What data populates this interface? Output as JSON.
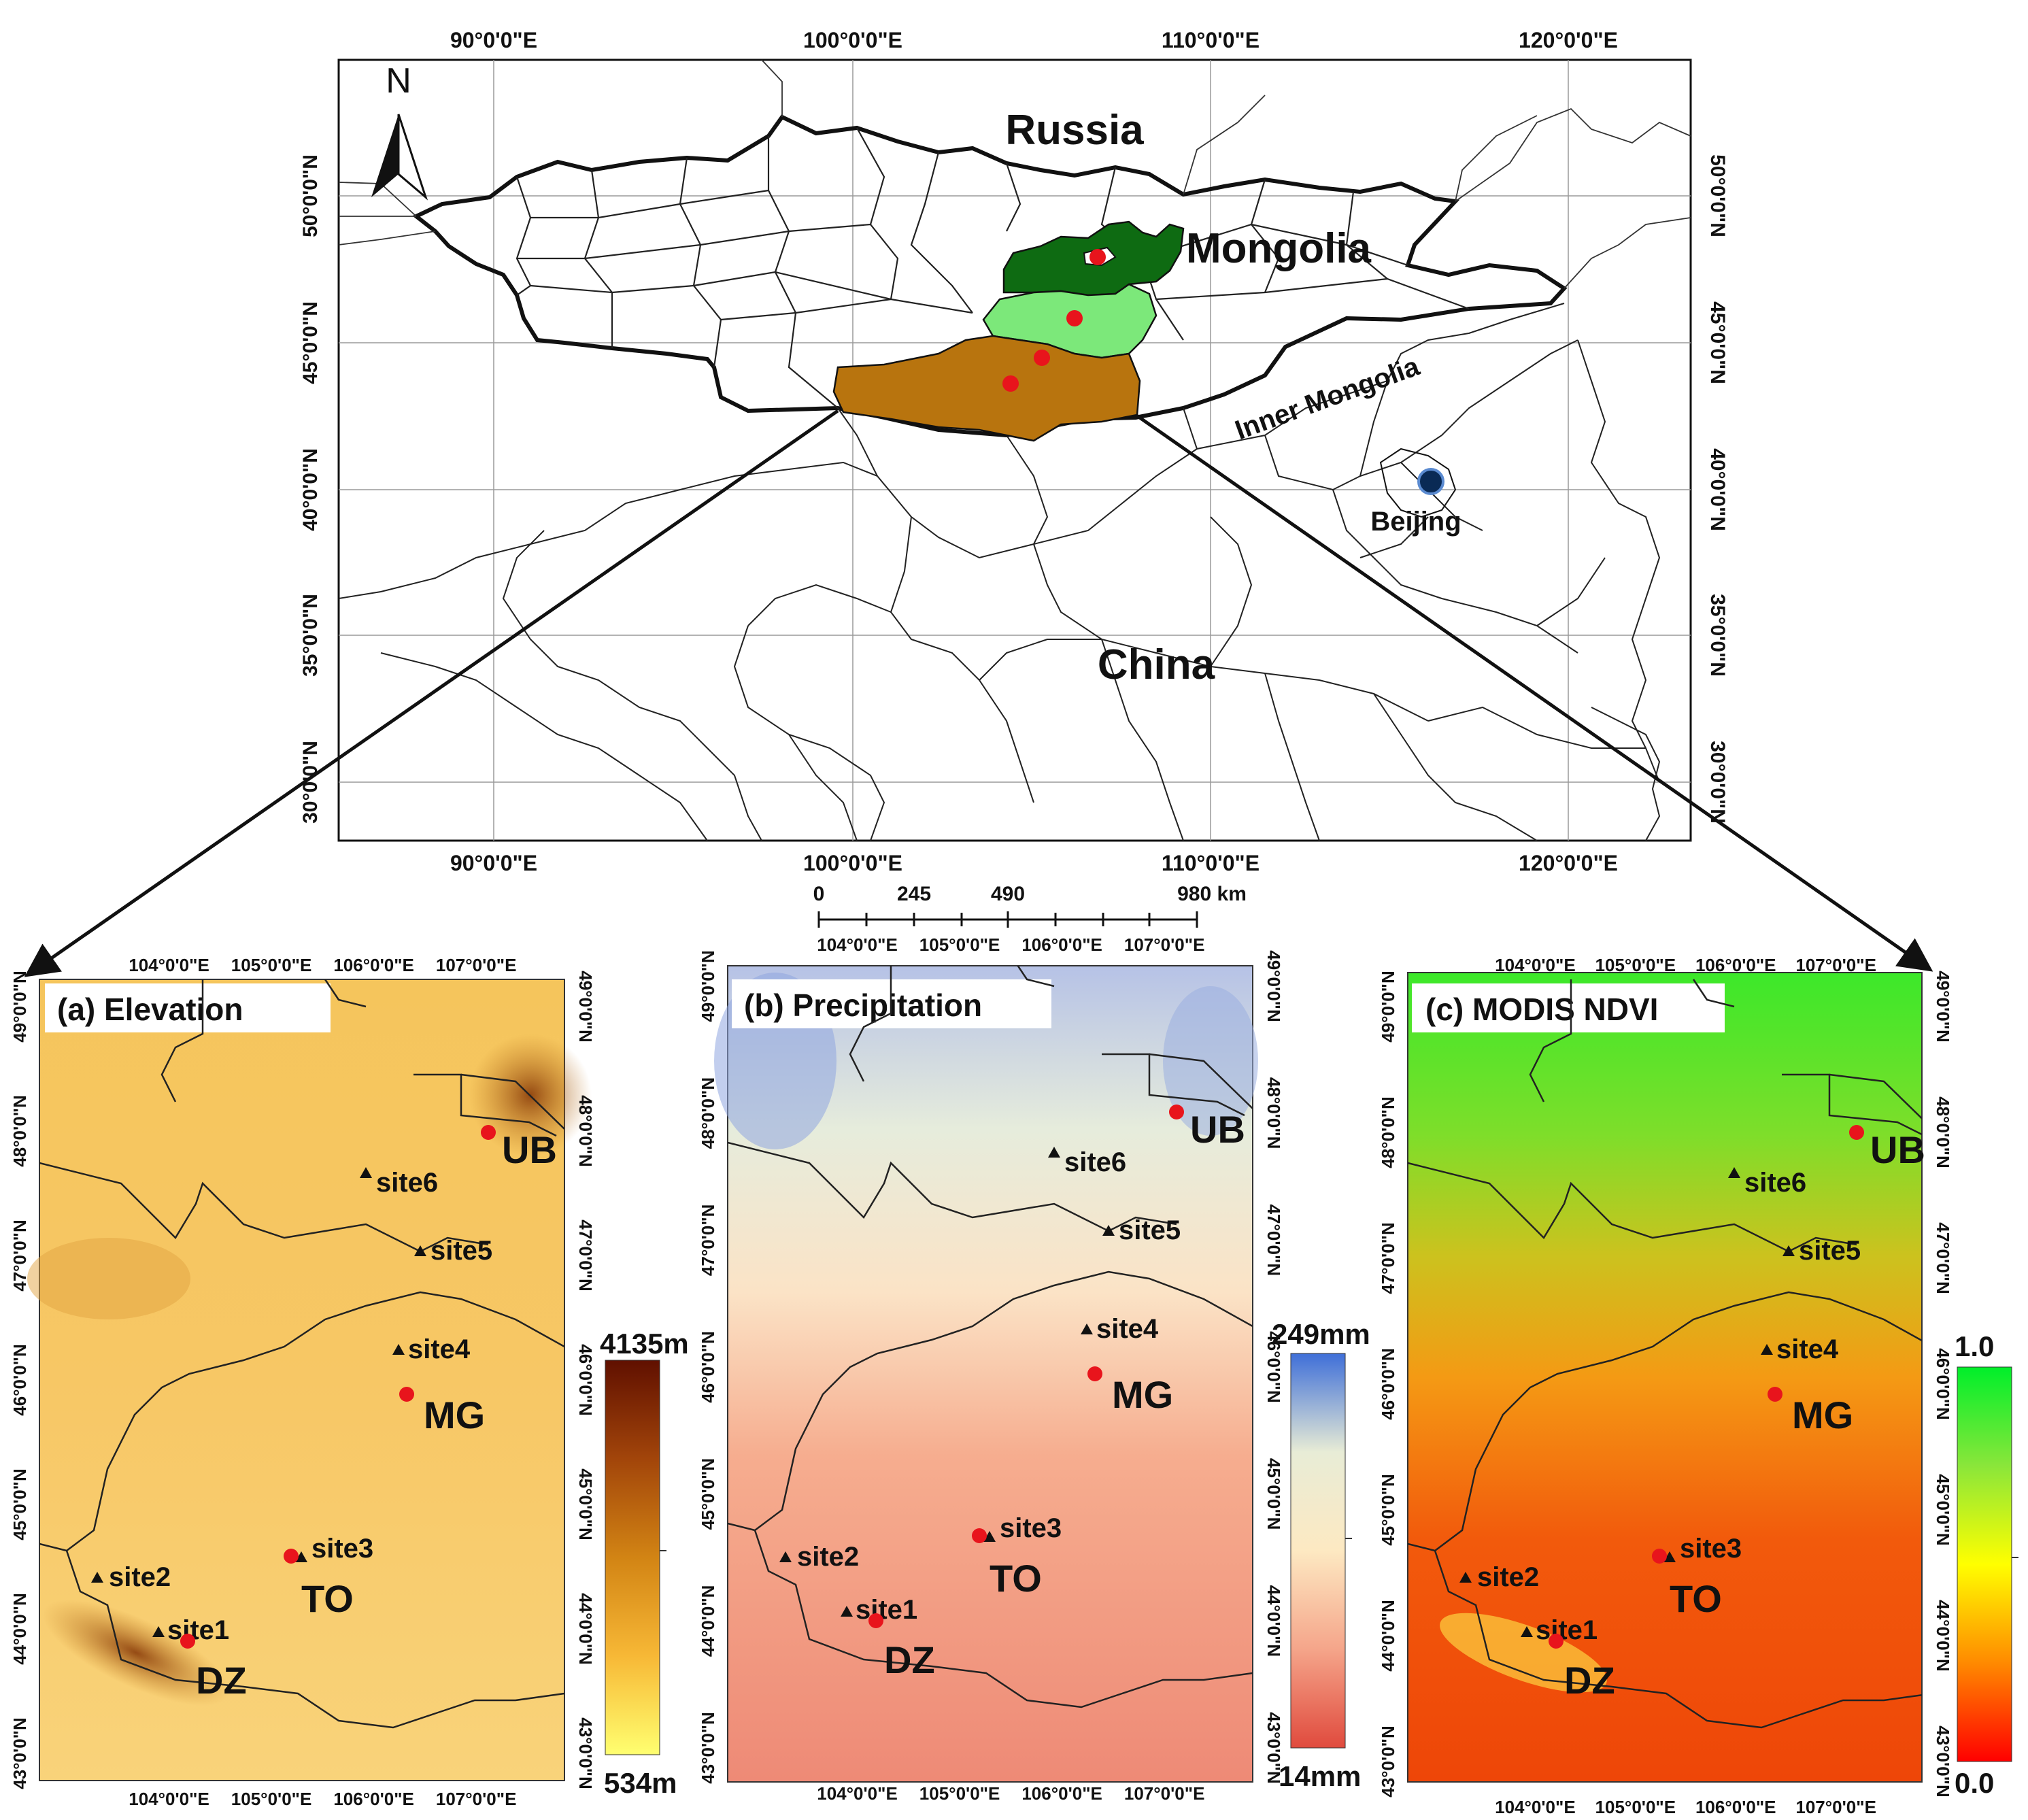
{
  "overview": {
    "top_lon_ticks": [
      "90°0'0\"E",
      "100°0'0\"E",
      "110°0'0\"E",
      "120°0'0\"E"
    ],
    "bottom_lon_ticks": [
      "90°0'0\"E",
      "100°0'0\"E",
      "110°0'0\"E",
      "120°0'0\"E"
    ],
    "lat_ticks": [
      "50°0'0\"N",
      "45°0'0\"N",
      "40°0'0\"N",
      "35°0'0\"N",
      "30°0'0\"N"
    ],
    "north_label": "N",
    "labels": {
      "russia": "Russia",
      "mongolia": "Mongolia",
      "inner_mongolia": "Inner Mongolia",
      "beijing": "Beijing",
      "china": "China"
    },
    "colors": {
      "dark_green": "#0e6b12",
      "light_green": "#7ce87a",
      "brown": "#b8740e",
      "site_dot": "#e8141c",
      "beijing_dot": "#0a2a55"
    }
  },
  "scale_bar": {
    "labels": [
      "0",
      "245",
      "490",
      "980 km"
    ]
  },
  "panels": [
    {
      "id": "a",
      "title": "(a) Elevation",
      "legend_max": "4135m",
      "legend_min": "534m",
      "legend_colors": [
        "#ffff70",
        "#f7b836",
        "#d28414",
        "#a2450a",
        "#601000"
      ]
    },
    {
      "id": "b",
      "title": "(b)  Precipitation",
      "legend_max": "249mm",
      "legend_min": "14mm",
      "legend_colors": [
        "#e04a3d",
        "#f5a58a",
        "#fde9c2",
        "#e8ecd6",
        "#3f6fd8"
      ]
    },
    {
      "id": "c",
      "title": "(c) MODIS NDVI",
      "legend_max": "1.0",
      "legend_min": "0.0",
      "legend_colors": [
        "#ff0000",
        "#ff8a00",
        "#ffff00",
        "#8ae63a",
        "#00ef2a"
      ]
    }
  ],
  "panel_lon_ticks": [
    "104°0'0\"E",
    "105°0'0\"E",
    "106°0'0\"E",
    "107°0'0\"E"
  ],
  "panel_lat_ticks": [
    "49°0'0\"N",
    "48°0'0\"N",
    "47°0'0\"N",
    "46°0'0\"N",
    "45°0'0\"N",
    "44°0'0\"N",
    "43°0'0\"N"
  ],
  "sites": [
    "site1",
    "site2",
    "site3",
    "site4",
    "site5",
    "site6"
  ],
  "stations": [
    "UB",
    "MG",
    "TO",
    "DZ"
  ]
}
